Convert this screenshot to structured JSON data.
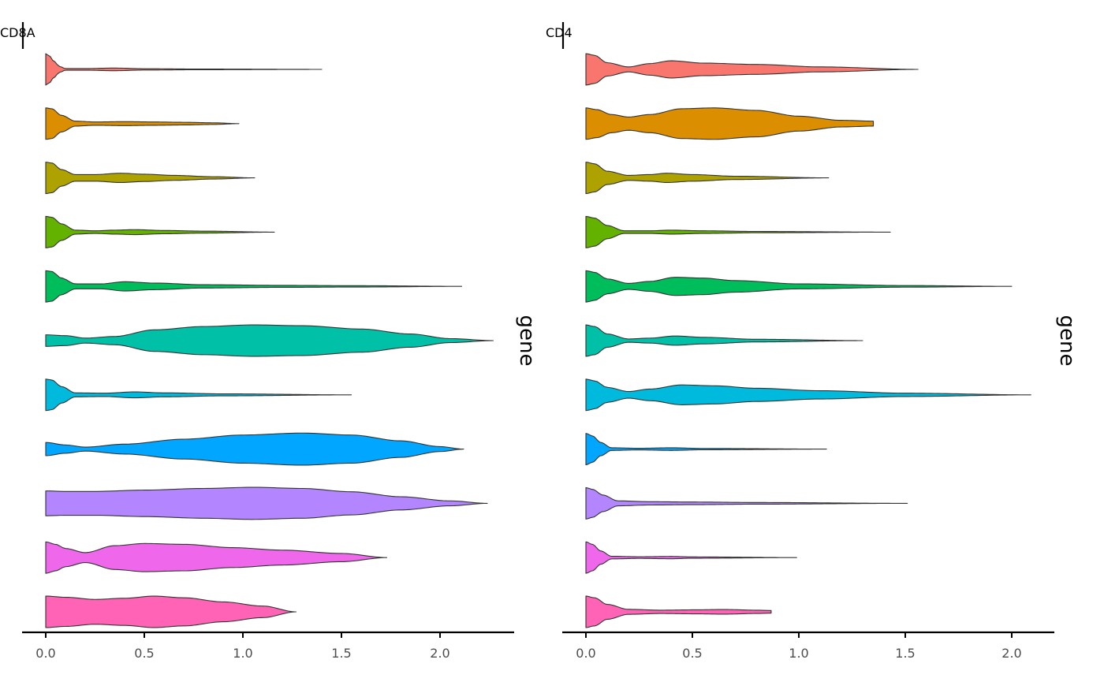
{
  "chart_data": [
    {
      "type": "violin",
      "title": "CD8A",
      "orientation": "horizontal",
      "ylabel": "gene",
      "xlim": [
        -0.12,
        2.4
      ],
      "xticks": [
        0,
        0.5,
        1,
        1.5,
        2
      ],
      "xtick_labels": [
        "0.0",
        "0.5",
        "1.0",
        "1.5",
        "2.0"
      ],
      "groups": [
        {
          "color": "#F8766D",
          "max": 1.4,
          "profile": [
            [
              0,
              0.95
            ],
            [
              0.02,
              0.8
            ],
            [
              0.04,
              0.5
            ],
            [
              0.07,
              0.18
            ],
            [
              0.1,
              0.05
            ],
            [
              0.2,
              0.05
            ],
            [
              0.35,
              0.08
            ],
            [
              0.5,
              0.04
            ],
            [
              0.8,
              0.02
            ],
            [
              1.4,
              0
            ]
          ]
        },
        {
          "color": "#DB8E00",
          "max": 0.98,
          "profile": [
            [
              0,
              0.95
            ],
            [
              0.03,
              0.9
            ],
            [
              0.08,
              0.5
            ],
            [
              0.15,
              0.15
            ],
            [
              0.25,
              0.1
            ],
            [
              0.4,
              0.12
            ],
            [
              0.55,
              0.1
            ],
            [
              0.7,
              0.08
            ],
            [
              0.85,
              0.05
            ],
            [
              0.98,
              0
            ]
          ]
        },
        {
          "color": "#AEA200",
          "max": 1.06,
          "profile": [
            [
              0,
              0.95
            ],
            [
              0.03,
              0.9
            ],
            [
              0.08,
              0.5
            ],
            [
              0.15,
              0.2
            ],
            [
              0.25,
              0.2
            ],
            [
              0.38,
              0.28
            ],
            [
              0.5,
              0.22
            ],
            [
              0.65,
              0.15
            ],
            [
              0.85,
              0.07
            ],
            [
              1.06,
              0
            ]
          ]
        },
        {
          "color": "#64B200",
          "max": 1.16,
          "profile": [
            [
              0,
              0.95
            ],
            [
              0.03,
              0.9
            ],
            [
              0.08,
              0.5
            ],
            [
              0.15,
              0.12
            ],
            [
              0.25,
              0.08
            ],
            [
              0.35,
              0.12
            ],
            [
              0.45,
              0.15
            ],
            [
              0.6,
              0.1
            ],
            [
              0.8,
              0.06
            ],
            [
              1.16,
              0
            ]
          ]
        },
        {
          "color": "#00BD5C",
          "max": 2.11,
          "profile": [
            [
              0,
              0.95
            ],
            [
              0.03,
              0.9
            ],
            [
              0.08,
              0.5
            ],
            [
              0.15,
              0.15
            ],
            [
              0.28,
              0.15
            ],
            [
              0.4,
              0.28
            ],
            [
              0.55,
              0.2
            ],
            [
              0.8,
              0.1
            ],
            [
              1.2,
              0.06
            ],
            [
              1.6,
              0.04
            ],
            [
              2.11,
              0
            ]
          ]
        },
        {
          "color": "#00C1A7",
          "max": 2.27,
          "profile": [
            [
              0,
              0.35
            ],
            [
              0.1,
              0.3
            ],
            [
              0.2,
              0.15
            ],
            [
              0.35,
              0.25
            ],
            [
              0.55,
              0.65
            ],
            [
              0.8,
              0.85
            ],
            [
              1.05,
              0.95
            ],
            [
              1.3,
              0.9
            ],
            [
              1.6,
              0.7
            ],
            [
              1.85,
              0.4
            ],
            [
              2.05,
              0.12
            ],
            [
              2.27,
              0
            ]
          ]
        },
        {
          "color": "#00BADE",
          "max": 1.55,
          "profile": [
            [
              0,
              0.95
            ],
            [
              0.03,
              0.9
            ],
            [
              0.08,
              0.5
            ],
            [
              0.15,
              0.12
            ],
            [
              0.3,
              0.1
            ],
            [
              0.45,
              0.18
            ],
            [
              0.6,
              0.12
            ],
            [
              0.9,
              0.06
            ],
            [
              1.55,
              0
            ]
          ]
        },
        {
          "color": "#00A6FF",
          "max": 2.12,
          "profile": [
            [
              0,
              0.4
            ],
            [
              0.1,
              0.25
            ],
            [
              0.2,
              0.12
            ],
            [
              0.4,
              0.3
            ],
            [
              0.7,
              0.6
            ],
            [
              1.0,
              0.85
            ],
            [
              1.3,
              0.97
            ],
            [
              1.55,
              0.85
            ],
            [
              1.8,
              0.5
            ],
            [
              2.0,
              0.15
            ],
            [
              2.12,
              0
            ]
          ]
        },
        {
          "color": "#B385FF",
          "max": 2.24,
          "profile": [
            [
              0,
              0.75
            ],
            [
              0.1,
              0.72
            ],
            [
              0.25,
              0.72
            ],
            [
              0.5,
              0.8
            ],
            [
              0.8,
              0.9
            ],
            [
              1.05,
              0.97
            ],
            [
              1.3,
              0.9
            ],
            [
              1.55,
              0.7
            ],
            [
              1.8,
              0.4
            ],
            [
              2.05,
              0.15
            ],
            [
              2.24,
              0
            ]
          ]
        },
        {
          "color": "#EF67EB",
          "max": 1.73,
          "profile": [
            [
              0,
              0.95
            ],
            [
              0.05,
              0.8
            ],
            [
              0.1,
              0.55
            ],
            [
              0.2,
              0.3
            ],
            [
              0.35,
              0.72
            ],
            [
              0.5,
              0.85
            ],
            [
              0.7,
              0.8
            ],
            [
              0.95,
              0.6
            ],
            [
              1.2,
              0.45
            ],
            [
              1.5,
              0.25
            ],
            [
              1.73,
              0
            ]
          ]
        },
        {
          "color": "#FF63B6",
          "max": 1.27,
          "profile": [
            [
              0,
              0.95
            ],
            [
              0.1,
              0.88
            ],
            [
              0.25,
              0.75
            ],
            [
              0.4,
              0.82
            ],
            [
              0.55,
              0.95
            ],
            [
              0.7,
              0.85
            ],
            [
              0.9,
              0.6
            ],
            [
              1.1,
              0.35
            ],
            [
              1.27,
              0
            ]
          ]
        }
      ]
    },
    {
      "type": "violin",
      "title": "CD4",
      "orientation": "horizontal",
      "ylabel": "gene",
      "xlim": [
        -0.105,
        2.2
      ],
      "xticks": [
        0,
        0.5,
        1,
        1.5,
        2
      ],
      "xtick_labels": [
        "0.0",
        "0.5",
        "1.0",
        "1.5",
        "2.0"
      ],
      "groups": [
        {
          "color": "#F8766D",
          "max": 1.56,
          "profile": [
            [
              0,
              0.95
            ],
            [
              0.04,
              0.85
            ],
            [
              0.1,
              0.4
            ],
            [
              0.2,
              0.15
            ],
            [
              0.3,
              0.35
            ],
            [
              0.4,
              0.52
            ],
            [
              0.55,
              0.38
            ],
            [
              0.8,
              0.3
            ],
            [
              1.1,
              0.15
            ],
            [
              1.56,
              0
            ]
          ]
        },
        {
          "color": "#DB8E00",
          "max": 1.35,
          "profile": [
            [
              0,
              0.95
            ],
            [
              0.05,
              0.85
            ],
            [
              0.12,
              0.55
            ],
            [
              0.2,
              0.4
            ],
            [
              0.3,
              0.55
            ],
            [
              0.45,
              0.9
            ],
            [
              0.6,
              0.95
            ],
            [
              0.8,
              0.8
            ],
            [
              1.0,
              0.45
            ],
            [
              1.2,
              0.2
            ],
            [
              1.35,
              0.15
            ],
            [
              1.355,
              0
            ]
          ]
        },
        {
          "color": "#AEA200",
          "max": 1.14,
          "profile": [
            [
              0,
              0.95
            ],
            [
              0.04,
              0.85
            ],
            [
              0.1,
              0.4
            ],
            [
              0.2,
              0.15
            ],
            [
              0.3,
              0.2
            ],
            [
              0.38,
              0.28
            ],
            [
              0.5,
              0.2
            ],
            [
              0.7,
              0.1
            ],
            [
              1.14,
              0
            ]
          ]
        },
        {
          "color": "#64B200",
          "max": 1.43,
          "profile": [
            [
              0,
              0.95
            ],
            [
              0.04,
              0.85
            ],
            [
              0.1,
              0.4
            ],
            [
              0.18,
              0.08
            ],
            [
              0.3,
              0.08
            ],
            [
              0.4,
              0.12
            ],
            [
              0.55,
              0.08
            ],
            [
              0.8,
              0.04
            ],
            [
              1.43,
              0
            ]
          ]
        },
        {
          "color": "#00BD5C",
          "max": 2.0,
          "profile": [
            [
              0,
              0.95
            ],
            [
              0.04,
              0.85
            ],
            [
              0.1,
              0.45
            ],
            [
              0.2,
              0.18
            ],
            [
              0.3,
              0.3
            ],
            [
              0.42,
              0.55
            ],
            [
              0.55,
              0.5
            ],
            [
              0.7,
              0.35
            ],
            [
              1.0,
              0.15
            ],
            [
              1.5,
              0.05
            ],
            [
              2.0,
              0
            ]
          ]
        },
        {
          "color": "#00C1A7",
          "max": 1.3,
          "profile": [
            [
              0,
              0.95
            ],
            [
              0.04,
              0.85
            ],
            [
              0.1,
              0.4
            ],
            [
              0.2,
              0.1
            ],
            [
              0.3,
              0.15
            ],
            [
              0.42,
              0.28
            ],
            [
              0.55,
              0.2
            ],
            [
              0.8,
              0.08
            ],
            [
              1.3,
              0
            ]
          ]
        },
        {
          "color": "#00BADE",
          "max": 2.09,
          "profile": [
            [
              0,
              0.95
            ],
            [
              0.04,
              0.85
            ],
            [
              0.1,
              0.45
            ],
            [
              0.2,
              0.2
            ],
            [
              0.3,
              0.35
            ],
            [
              0.45,
              0.6
            ],
            [
              0.6,
              0.55
            ],
            [
              0.8,
              0.4
            ],
            [
              1.1,
              0.25
            ],
            [
              1.5,
              0.1
            ],
            [
              2.09,
              0
            ]
          ]
        },
        {
          "color": "#00A6FF",
          "max": 1.13,
          "profile": [
            [
              0,
              0.95
            ],
            [
              0.03,
              0.8
            ],
            [
              0.07,
              0.4
            ],
            [
              0.12,
              0.08
            ],
            [
              0.25,
              0.05
            ],
            [
              0.4,
              0.08
            ],
            [
              0.55,
              0.04
            ],
            [
              1.13,
              0
            ]
          ]
        },
        {
          "color": "#B385FF",
          "max": 1.51,
          "profile": [
            [
              0,
              0.95
            ],
            [
              0.03,
              0.85
            ],
            [
              0.08,
              0.5
            ],
            [
              0.15,
              0.15
            ],
            [
              0.3,
              0.1
            ],
            [
              0.5,
              0.08
            ],
            [
              0.8,
              0.05
            ],
            [
              1.51,
              0
            ]
          ]
        },
        {
          "color": "#EF67EB",
          "max": 0.99,
          "profile": [
            [
              0,
              0.95
            ],
            [
              0.03,
              0.8
            ],
            [
              0.07,
              0.4
            ],
            [
              0.12,
              0.08
            ],
            [
              0.25,
              0.05
            ],
            [
              0.4,
              0.07
            ],
            [
              0.5,
              0.04
            ],
            [
              0.99,
              0
            ]
          ]
        },
        {
          "color": "#FF63B6",
          "max": 0.87,
          "profile": [
            [
              0,
              0.95
            ],
            [
              0.04,
              0.85
            ],
            [
              0.1,
              0.45
            ],
            [
              0.2,
              0.15
            ],
            [
              0.35,
              0.1
            ],
            [
              0.5,
              0.12
            ],
            [
              0.65,
              0.14
            ],
            [
              0.8,
              0.1
            ],
            [
              0.87,
              0.08
            ],
            [
              0.875,
              0
            ]
          ]
        }
      ]
    }
  ]
}
